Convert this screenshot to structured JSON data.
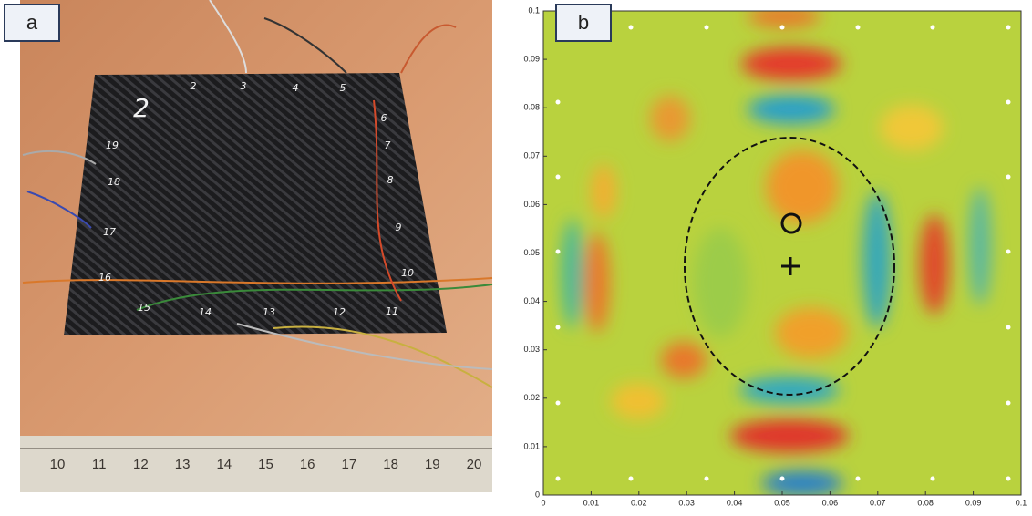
{
  "panel_a": {
    "label": "a",
    "plate_labels": [
      "2",
      "2",
      "3",
      "4",
      "5",
      "6",
      "7",
      "8",
      "9",
      "10",
      "11",
      "12",
      "13",
      "14",
      "15",
      "16",
      "17",
      "18",
      "19"
    ],
    "ruler_labels": [
      "10",
      "11",
      "12",
      "13",
      "14",
      "15",
      "16",
      "17",
      "18",
      "19",
      "20"
    ]
  },
  "panel_b": {
    "label": "b",
    "xlim": [
      0,
      0.1
    ],
    "ylim": [
      0,
      0.1
    ],
    "xticks": [
      0,
      0.01,
      0.02,
      0.03,
      0.04,
      0.05,
      0.06,
      0.07,
      0.08,
      0.09,
      0.1
    ],
    "yticks": [
      0,
      0.01,
      0.02,
      0.03,
      0.04,
      0.05,
      0.06,
      0.07,
      0.08,
      0.09,
      0.1
    ]
  }
}
